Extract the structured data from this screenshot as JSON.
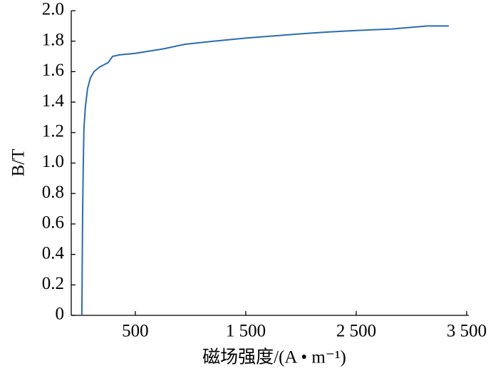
{
  "chart_data": {
    "type": "line",
    "xlabel": "磁场强度/(A • m⁻¹)",
    "ylabel": "B/T",
    "x": [
      16,
      23,
      29,
      35,
      48,
      68,
      94,
      126,
      177,
      255,
      294,
      358,
      500,
      758,
      952,
      1210,
      1500,
      1855,
      2035,
      2242,
      2500,
      2823,
      3145,
      3339
    ],
    "series": [
      {
        "color": "#2a6db0",
        "values": [
          0,
          0.67,
          0.99,
          1.23,
          1.37,
          1.49,
          1.56,
          1.6,
          1.63,
          1.66,
          1.7,
          1.71,
          1.72,
          1.75,
          1.78,
          1.8,
          1.82,
          1.84,
          1.85,
          1.86,
          1.87,
          1.88,
          1.9,
          1.9
        ]
      }
    ],
    "xlim": [
      -80,
      3500
    ],
    "xticks": [
      500,
      {
        "value": 1500,
        "label": "1 500"
      },
      {
        "value": 2500,
        "label": "2 500"
      },
      {
        "value": 3500,
        "label": "3 500"
      }
    ],
    "ylim": [
      0,
      2
    ],
    "yticks": [
      0,
      0.2,
      0.4,
      0.6,
      0.8,
      {
        "value": 1,
        "label": "1.0"
      },
      1.2,
      1.4,
      1.6,
      1.8,
      {
        "value": 2,
        "label": "2.0"
      }
    ]
  }
}
